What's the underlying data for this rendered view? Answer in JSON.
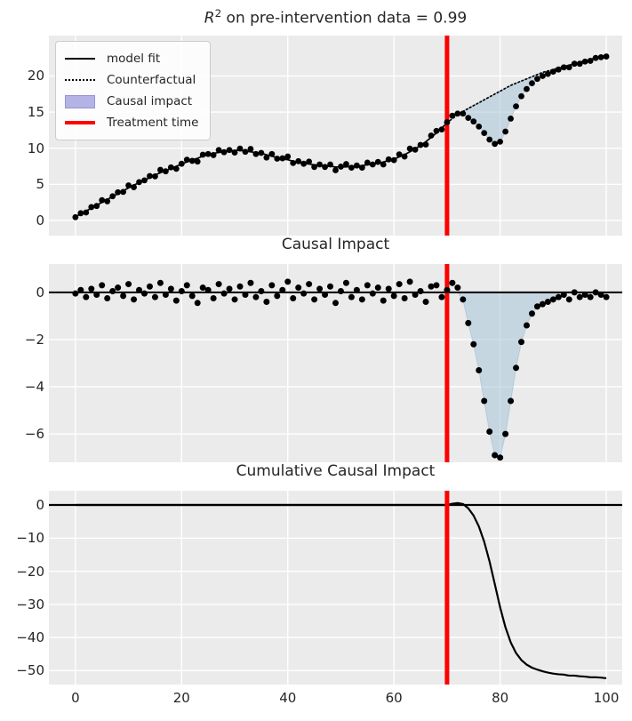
{
  "figure": {
    "background": "#ffffff",
    "panel_background": "#EBEBEC",
    "grid_color": "#ffffff",
    "text_color": "#262626",
    "data_color": "#000000",
    "treatment_line_color": "#ff0000",
    "impact_fill_color": "#a8c4d8",
    "legend_patch_color": "#b3b3e6"
  },
  "titles": {
    "top_r": "R",
    "top_sup": "2",
    "top_rest": " on pre-intervention data = 0.99",
    "middle": "Causal Impact",
    "bottom": "Cumulative Causal Impact"
  },
  "legend": {
    "items": [
      {
        "label": "model fit",
        "handle": "solid-line"
      },
      {
        "label": "Counterfactual",
        "handle": "dotted-line"
      },
      {
        "label": "Causal impact",
        "handle": "patch"
      },
      {
        "label": "Treatment time",
        "handle": "red-line"
      }
    ]
  },
  "axis": {
    "xticklabels": [
      "0",
      "20",
      "40",
      "60",
      "80",
      "100"
    ]
  },
  "chart_data": [
    {
      "type": "line",
      "title": "R^2 on pre-intervention data = 0.99",
      "xlabel": "",
      "ylabel": "",
      "xlim": [
        -5,
        103
      ],
      "ylim": [
        -2.1,
        25.6
      ],
      "xticks": [
        0,
        20,
        40,
        60,
        80,
        100
      ],
      "yticks": [
        0,
        5,
        10,
        15,
        20
      ],
      "yticklabels": [
        "0",
        "5",
        "10",
        "15",
        "20"
      ],
      "grid": true,
      "legend_position": "upper-left",
      "treatment_x": 70,
      "x_start": 0,
      "x_step": 1,
      "model_fit_pre": [
        0.5,
        0.9,
        1.3,
        1.7,
        2.1,
        2.5,
        2.9,
        3.3,
        3.7,
        4.1,
        4.5,
        4.9,
        5.2,
        5.6,
        5.9,
        6.3,
        6.6,
        6.9,
        7.2,
        7.5,
        7.8,
        8.1,
        8.4,
        8.6,
        8.9,
        9.1,
        9.3,
        9.4,
        9.5,
        9.6,
        9.7,
        9.7,
        9.6,
        9.5,
        9.4,
        9.3,
        9.1,
        8.9,
        8.7,
        8.5,
        8.4,
        8.2,
        8.0,
        7.9,
        7.8,
        7.7,
        7.6,
        7.5,
        7.5,
        7.4,
        7.4,
        7.4,
        7.5,
        7.5,
        7.6,
        7.7,
        7.8,
        7.9,
        8.1,
        8.3,
        8.5,
        8.8,
        9.1,
        9.5,
        9.9,
        10.4,
        10.9,
        11.5,
        12.1,
        12.8,
        13.5
      ],
      "residuals_pre": [
        -0.05,
        0.1,
        -0.2,
        0.15,
        -0.1,
        0.3,
        -0.25,
        0.05,
        0.2,
        -0.15,
        0.35,
        -0.3,
        0.1,
        -0.05,
        0.25,
        -0.2,
        0.4,
        -0.1,
        0.15,
        -0.35,
        0.05,
        0.3,
        -0.15,
        -0.45,
        0.2,
        0.1,
        -0.25,
        0.35,
        -0.05,
        0.15,
        -0.3,
        0.25,
        -0.1,
        0.4,
        -0.2,
        0.05,
        -0.4,
        0.3,
        -0.15,
        0.1,
        0.45,
        -0.25,
        0.2,
        -0.05,
        0.35,
        -0.3,
        0.15,
        -0.1,
        0.25,
        -0.45,
        0.05,
        0.4,
        -0.2,
        0.1,
        -0.3,
        0.3,
        -0.05,
        0.2,
        -0.35,
        0.15,
        -0.15,
        0.35,
        -0.25,
        0.45,
        -0.1,
        0.05,
        -0.4,
        0.25,
        0.3,
        -0.2,
        0.1
      ],
      "counterfactual_post_x_start": 70,
      "counterfactual_post": [
        13.5,
        14.1,
        14.6,
        15.1,
        15.5,
        15.9,
        16.3,
        16.7,
        17.1,
        17.5,
        17.9,
        18.3,
        18.7,
        19.0,
        19.3,
        19.6,
        19.9,
        20.2,
        20.5,
        20.7,
        20.9,
        21.1,
        21.3,
        21.5,
        21.7,
        21.9,
        22.1,
        22.3,
        22.5,
        22.7,
        22.9
      ],
      "impact_post": [
        0,
        0.4,
        0.2,
        -0.3,
        -1.3,
        -2.2,
        -3.3,
        -4.6,
        -5.9,
        -6.9,
        -7.0,
        -6.0,
        -4.6,
        -3.2,
        -2.1,
        -1.4,
        -0.9,
        -0.6,
        -0.5,
        -0.4,
        -0.3,
        -0.2,
        -0.1,
        -0.3,
        0.0,
        -0.2,
        -0.1,
        -0.2,
        0.0,
        -0.1,
        -0.2
      ],
      "fill_x_range": [
        72,
        91
      ]
    },
    {
      "type": "scatter",
      "title": "Causal Impact",
      "xlabel": "",
      "ylabel": "",
      "xlim": [
        -5,
        103
      ],
      "ylim": [
        -7.2,
        1.2
      ],
      "xticks": [
        0,
        20,
        40,
        60,
        80,
        100
      ],
      "yticks": [
        0,
        -2,
        -4,
        -6
      ],
      "yticklabels": [
        "0",
        "−2",
        "−4",
        "−6"
      ],
      "grid": true,
      "treatment_x": 70,
      "zero_line": 0,
      "x_start": 0,
      "x_step": 1,
      "values_pre": [
        -0.05,
        0.1,
        -0.2,
        0.15,
        -0.1,
        0.3,
        -0.25,
        0.05,
        0.2,
        -0.15,
        0.35,
        -0.3,
        0.1,
        -0.05,
        0.25,
        -0.2,
        0.4,
        -0.1,
        0.15,
        -0.35,
        0.05,
        0.3,
        -0.15,
        -0.45,
        0.2,
        0.1,
        -0.25,
        0.35,
        -0.05,
        0.15,
        -0.3,
        0.25,
        -0.1,
        0.4,
        -0.2,
        0.05,
        -0.4,
        0.3,
        -0.15,
        0.1,
        0.45,
        -0.25,
        0.2,
        -0.05,
        0.35,
        -0.3,
        0.15,
        -0.1,
        0.25,
        -0.45,
        0.05,
        0.4,
        -0.2,
        0.1,
        -0.3,
        0.3,
        -0.05,
        0.2,
        -0.35,
        0.15,
        -0.15,
        0.35,
        -0.25,
        0.45,
        -0.1,
        0.05,
        -0.4,
        0.25,
        0.3,
        -0.2,
        0.1
      ],
      "values_post_x_start": 71,
      "values_post": [
        0.4,
        0.2,
        -0.3,
        -1.3,
        -2.2,
        -3.3,
        -4.6,
        -5.9,
        -6.9,
        -7.0,
        -6.0,
        -4.6,
        -3.2,
        -2.1,
        -1.4,
        -0.9,
        -0.6,
        -0.5,
        -0.4,
        -0.3,
        -0.2,
        -0.1,
        -0.3,
        0.0,
        -0.2,
        -0.1,
        -0.2,
        0.0,
        -0.1,
        -0.2
      ],
      "fill_x_range": [
        72,
        91
      ]
    },
    {
      "type": "line",
      "title": "Cumulative Causal Impact",
      "xlabel": "",
      "ylabel": "",
      "xlim": [
        -5,
        103
      ],
      "ylim": [
        -54.2,
        4.3
      ],
      "xticks": [
        0,
        20,
        40,
        60,
        80,
        100
      ],
      "xticklabels": [
        "0",
        "20",
        "40",
        "60",
        "80",
        "100"
      ],
      "yticks": [
        0,
        -10,
        -20,
        -30,
        -40,
        -50
      ],
      "yticklabels": [
        "0",
        "−10",
        "−20",
        "−30",
        "−40",
        "−50"
      ],
      "grid": true,
      "treatment_x": 70,
      "zero_line": 0,
      "x_start": 0,
      "x_step": 1,
      "cumulative_pre_value": 0,
      "cumulative_post_x_start": 70,
      "cumulative_post": [
        0,
        0.4,
        0.6,
        0.3,
        -1.0,
        -3.2,
        -6.5,
        -11.1,
        -17.0,
        -23.9,
        -30.9,
        -36.9,
        -41.5,
        -44.7,
        -46.8,
        -48.2,
        -49.1,
        -49.7,
        -50.2,
        -50.6,
        -50.9,
        -51.1,
        -51.2,
        -51.5,
        -51.5,
        -51.7,
        -51.8,
        -52.0,
        -52.0,
        -52.1,
        -52.3
      ]
    }
  ]
}
